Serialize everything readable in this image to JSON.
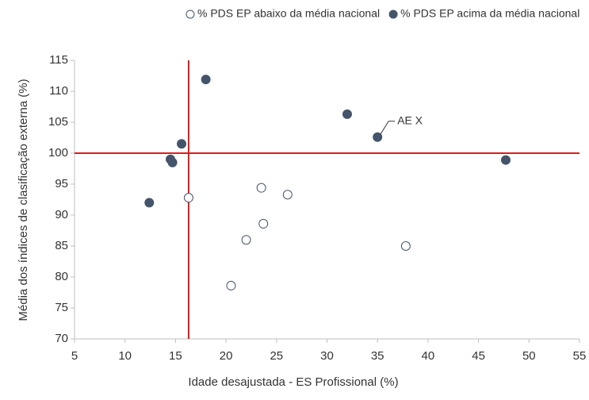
{
  "chart_data": {
    "type": "scatter",
    "x_label": "Idade desajustada - ES Profissional (%)",
    "y_label": "Média dos índices de clasificação externa (%)",
    "series": [
      {
        "name": "% PDS EP abaixo da média nacional",
        "color": "#ffffff",
        "x": [
          16.3,
          23.5,
          26.1,
          23.7,
          22.0,
          20.5,
          37.8
        ],
        "values": [
          92.8,
          94.4,
          93.3,
          88.6,
          86.0,
          78.6,
          85.0
        ]
      },
      {
        "name": "% PDS EP acima da média nacional",
        "color": "#44546a",
        "x": [
          12.4,
          14.5,
          14.7,
          15.6,
          18.0,
          32.0,
          35.0,
          47.7
        ],
        "values": [
          92.0,
          99.0,
          98.5,
          101.5,
          111.9,
          106.3,
          102.6,
          98.9
        ]
      }
    ],
    "reference_lines": {
      "x": 16.3,
      "y": 100,
      "color": "#e31a1c"
    },
    "annotations": [
      {
        "text": "AE X",
        "x": 35.0,
        "y": 102.6
      }
    ],
    "xlim": [
      5,
      55
    ],
    "xticks": [
      5,
      10,
      15,
      20,
      25,
      30,
      35,
      40,
      45,
      50,
      55
    ],
    "ylim": [
      70,
      115
    ],
    "yticks": [
      70,
      75,
      80,
      85,
      90,
      95,
      100,
      105,
      110,
      115
    ],
    "grid": false,
    "legend": "top"
  }
}
